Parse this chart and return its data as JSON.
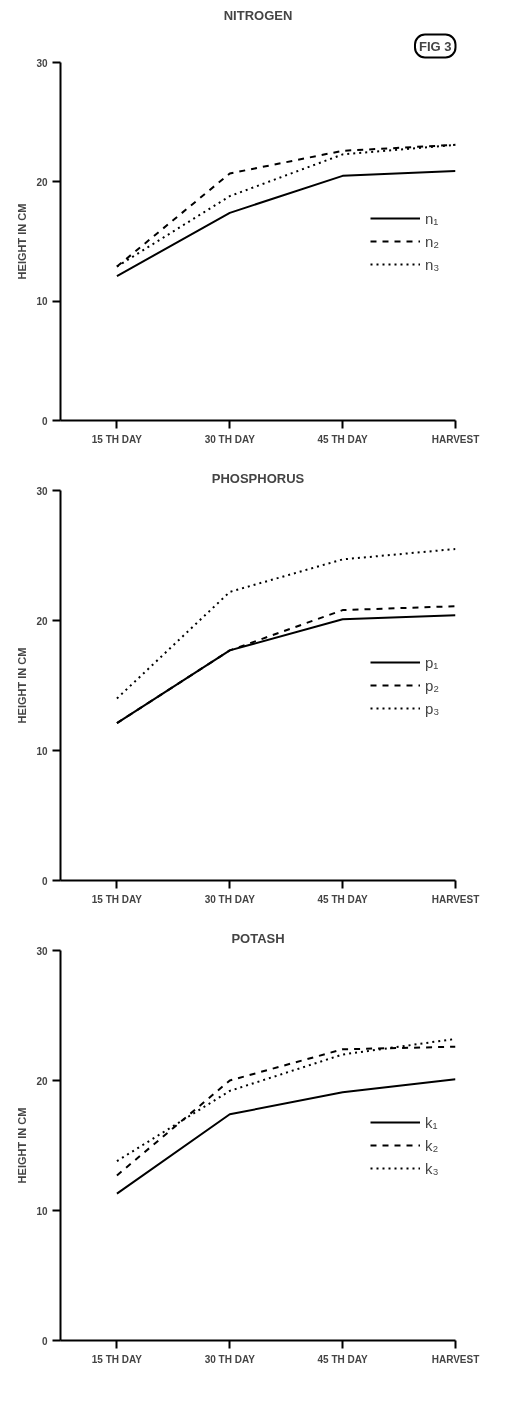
{
  "chart_data": [
    {
      "type": "line",
      "title": "NITROGEN",
      "ylabel": "HEIGHT IN CM",
      "annotations": [
        "FIG 3"
      ],
      "categories": [
        "15 TH DAY",
        "30 TH DAY",
        "45 TH DAY",
        "HARVEST"
      ],
      "ylim": [
        0,
        30
      ],
      "yticks": [
        0,
        10,
        20,
        30
      ],
      "legend": "right",
      "series": [
        {
          "name": "n₁",
          "color": "#000000",
          "line_style": "solid",
          "values": [
            12.1,
            17.4,
            20.5,
            20.9
          ]
        },
        {
          "name": "n₂",
          "color": "#000000",
          "line_style": "dashed",
          "values": [
            12.9,
            20.7,
            22.6,
            23.1
          ]
        },
        {
          "name": "n₃",
          "color": "#000000",
          "line_style": "dotted",
          "values": [
            12.9,
            18.8,
            22.3,
            23.1
          ]
        }
      ]
    },
    {
      "type": "line",
      "title": "PHOSPHORUS",
      "ylabel": "HEIGHT IN CM",
      "categories": [
        "15 TH DAY",
        "30 TH DAY",
        "45 TH DAY",
        "HARVEST"
      ],
      "ylim": [
        0,
        30
      ],
      "yticks": [
        0,
        10,
        20,
        30
      ],
      "legend": "right",
      "series": [
        {
          "name": "p₁",
          "color": "#000000",
          "line_style": "solid",
          "values": [
            12.1,
            17.7,
            20.1,
            20.4
          ]
        },
        {
          "name": "p₂",
          "color": "#000000",
          "line_style": "dashed",
          "values": [
            12.1,
            17.7,
            20.8,
            21.1
          ]
        },
        {
          "name": "p₃",
          "color": "#000000",
          "line_style": "dotted",
          "values": [
            14.0,
            22.2,
            24.7,
            25.5
          ]
        }
      ]
    },
    {
      "type": "line",
      "title": "POTASH",
      "ylabel": "HEIGHT IN CM",
      "categories": [
        "15 TH DAY",
        "30 TH DAY",
        "45 TH DAY",
        "HARVEST"
      ],
      "ylim": [
        0,
        30
      ],
      "yticks": [
        0,
        10,
        20,
        30
      ],
      "legend": "right",
      "series": [
        {
          "name": "k₁",
          "color": "#000000",
          "line_style": "solid",
          "values": [
            11.3,
            17.4,
            19.1,
            20.1
          ]
        },
        {
          "name": "k₂",
          "color": "#000000",
          "line_style": "dashed",
          "values": [
            12.7,
            20.0,
            22.4,
            22.6
          ]
        },
        {
          "name": "k₃",
          "color": "#000000",
          "line_style": "dotted",
          "values": [
            13.8,
            19.2,
            22.0,
            23.2
          ]
        }
      ]
    }
  ]
}
